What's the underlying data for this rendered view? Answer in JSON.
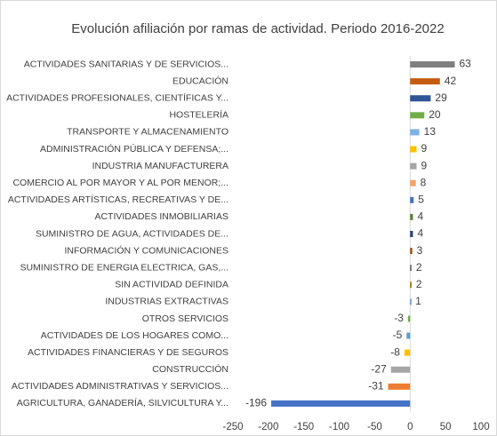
{
  "chart_data": {
    "type": "barh",
    "title": "Evolución afiliación por ramas de actividad. Periodo 2016-2022",
    "categories": [
      "ACTIVIDADES SANITARIAS Y DE SERVICIOS...",
      "EDUCACIÓN",
      "ACTIVIDADES PROFESIONALES, CIENTÍFICAS Y...",
      "HOSTELERÍA",
      "TRANSPORTE Y ALMACENAMIENTO",
      "ADMINISTRACIÓN PÚBLICA Y DEFENSA;...",
      "INDUSTRIA MANUFACTURERA",
      "COMERCIO AL POR MAYOR Y AL POR MENOR;...",
      "ACTIVIDADES ARTÍSTICAS, RECREATIVAS Y DE...",
      "ACTIVIDADES INMOBILIARIAS",
      "SUMINISTRO DE AGUA, ACTIVIDADES DE...",
      "INFORMACIÓN Y COMUNICACIONES",
      "SUMINISTRO DE ENERGIA ELECTRICA, GAS,...",
      "SIN ACTIVIDAD DEFINIDA",
      "INDUSTRIAS EXTRACTIVAS",
      "OTROS SERVICIOS",
      "ACTIVIDADES DE LOS HOGARES COMO...",
      "ACTIVIDADES FINANCIERAS Y DE SEGUROS",
      "CONSTRUCCIÓN",
      "ACTIVIDADES ADMINISTRATIVAS Y SERVICIOS...",
      "AGRICULTURA, GANADERÍA, SILVICULTURA Y..."
    ],
    "values": [
      63,
      42,
      29,
      20,
      13,
      9,
      9,
      8,
      5,
      4,
      4,
      3,
      2,
      2,
      1,
      -3,
      -5,
      -8,
      -27,
      -31,
      -196
    ],
    "colors": [
      "#7f7f7f",
      "#c55a11",
      "#2f5597",
      "#70ad47",
      "#7fb2e0",
      "#ffc000",
      "#a5a5a5",
      "#f4a46b",
      "#4472c4",
      "#548235",
      "#264478",
      "#9e480e",
      "#636363",
      "#997300",
      "#698ed0",
      "#70ad47",
      "#5b9bd5",
      "#ffc000",
      "#a5a5a5",
      "#ed7d31",
      "#4472c4"
    ],
    "xlim": [
      -250,
      100
    ],
    "xticks": [
      -250,
      -200,
      -150,
      -100,
      -50,
      0,
      50,
      100
    ]
  }
}
